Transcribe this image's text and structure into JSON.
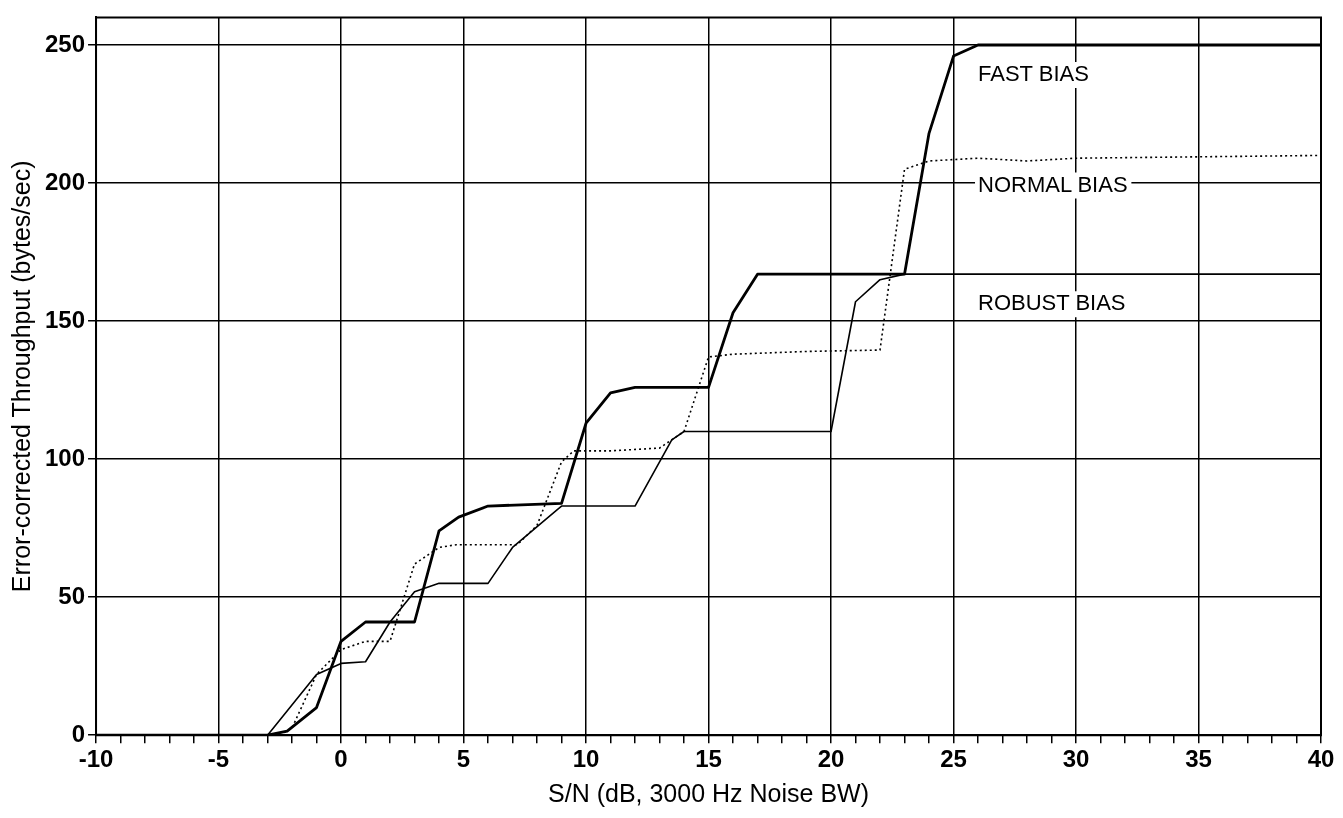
{
  "chart_data": {
    "type": "line",
    "xlabel": "S/N (dB, 3000 Hz Noise BW)",
    "ylabel": "Error-corrected Throughput (bytes/sec)",
    "xlim": [
      -10,
      40
    ],
    "ylim": [
      0,
      260
    ],
    "xticks": [
      -10,
      {
        "value": -9,
        "label": null
      },
      {
        "value": -8,
        "label": null
      },
      {
        "value": -7,
        "label": null
      },
      {
        "value": -6,
        "label": null
      },
      -5,
      {
        "value": -4,
        "label": null
      },
      {
        "value": -3,
        "label": null
      },
      {
        "value": -2,
        "label": null
      },
      {
        "value": -1,
        "label": null
      },
      0,
      {
        "value": 1,
        "label": null
      },
      {
        "value": 2,
        "label": null
      },
      {
        "value": 3,
        "label": null
      },
      {
        "value": 4,
        "label": null
      },
      5,
      {
        "value": 6,
        "label": null
      },
      {
        "value": 7,
        "label": null
      },
      {
        "value": 8,
        "label": null
      },
      {
        "value": 9,
        "label": null
      },
      10,
      {
        "value": 11,
        "label": null
      },
      {
        "value": 12,
        "label": null
      },
      {
        "value": 13,
        "label": null
      },
      {
        "value": 14,
        "label": null
      },
      15,
      {
        "value": 16,
        "label": null
      },
      {
        "value": 17,
        "label": null
      },
      {
        "value": 18,
        "label": null
      },
      {
        "value": 19,
        "label": null
      },
      20,
      {
        "value": 21,
        "label": null
      },
      {
        "value": 22,
        "label": null
      },
      {
        "value": 23,
        "label": null
      },
      {
        "value": 24,
        "label": null
      },
      25,
      {
        "value": 26,
        "label": null
      },
      {
        "value": 27,
        "label": null
      },
      {
        "value": 28,
        "label": null
      },
      {
        "value": 29,
        "label": null
      },
      30,
      {
        "value": 31,
        "label": null
      },
      {
        "value": 32,
        "label": null
      },
      {
        "value": 33,
        "label": null
      },
      {
        "value": 34,
        "label": null
      },
      35,
      {
        "value": 36,
        "label": null
      },
      {
        "value": 37,
        "label": null
      },
      {
        "value": 38,
        "label": null
      },
      {
        "value": 39,
        "label": null
      },
      40
    ],
    "yticks": [
      0,
      50,
      100,
      150,
      200,
      250
    ],
    "grid": true,
    "legend": false,
    "marker": "none",
    "series": [
      {
        "name": "FAST BIAS",
        "color": "#000000",
        "line_style": "solid",
        "x": [
          -10,
          -3,
          -2.2,
          -1,
          0,
          1,
          3,
          4,
          4.8,
          6,
          9,
          10,
          11,
          12,
          15,
          16,
          17,
          23,
          24,
          25,
          26,
          40
        ],
        "values": [
          0,
          0,
          1.5,
          10,
          34,
          41,
          41,
          74,
          79,
          83,
          84,
          113,
          124,
          126,
          126,
          153,
          167,
          167,
          218,
          246,
          250,
          250
        ]
      },
      {
        "name": "NORMAL BIAS",
        "color": "#000000",
        "line_style": "dotted",
        "x": [
          -2.5,
          -2,
          -1,
          0,
          1,
          2,
          3,
          4,
          4.7,
          7.2,
          8,
          9,
          9.5,
          11,
          13,
          14,
          15,
          16,
          19,
          22,
          23,
          24,
          26,
          28,
          30,
          40
        ],
        "values": [
          0,
          2.6,
          22,
          31,
          34,
          34,
          62,
          68,
          69,
          69,
          76,
          99,
          103,
          103,
          104,
          110,
          137,
          138,
          139,
          139.5,
          205,
          208,
          209,
          208,
          209,
          210
        ]
      },
      {
        "name": "ROBUST BIAS",
        "color": "#000000",
        "line_style": "solid",
        "x": [
          -3,
          -1,
          0,
          1,
          2,
          3,
          4,
          6,
          7,
          9,
          12,
          13.5,
          14,
          14.6,
          20,
          21,
          22,
          23,
          40
        ],
        "values": [
          0,
          22,
          26,
          26.6,
          41,
          52,
          55,
          55,
          68,
          83,
          83,
          107,
          110,
          110,
          110,
          157,
          165,
          167,
          167
        ]
      }
    ]
  }
}
